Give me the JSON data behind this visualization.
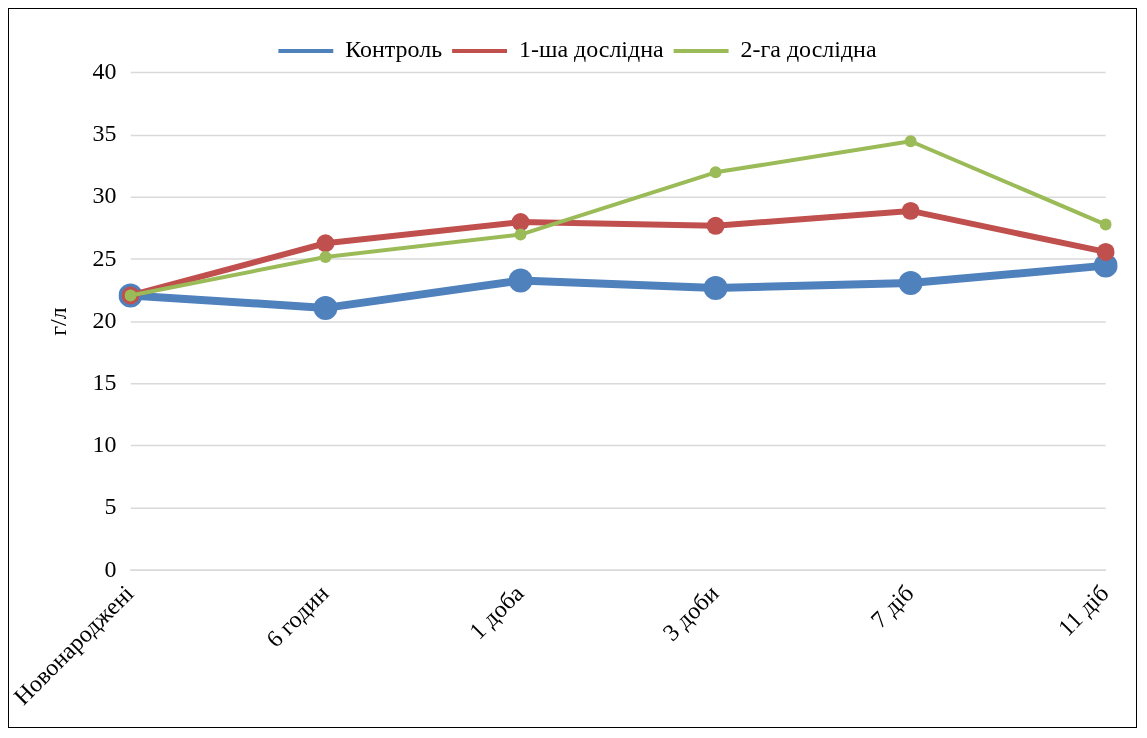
{
  "chart_data": {
    "type": "line",
    "ylabel": "г/л",
    "categories": [
      "Новонароджені",
      "6 годин",
      "1 доба",
      "3 доби",
      "7 діб",
      "11 діб"
    ],
    "series": [
      {
        "name": "Контроль",
        "color": "#4f81bd",
        "values": [
          22.1,
          21.1,
          23.3,
          22.7,
          23.1,
          24.5
        ]
      },
      {
        "name": "1-ша дослідна",
        "color": "#c0504d",
        "values": [
          22.1,
          26.3,
          28.0,
          27.7,
          28.9,
          25.6
        ]
      },
      {
        "name": "2-га дослідна",
        "color": "#9bbb59",
        "values": [
          22.1,
          25.2,
          27.0,
          32.0,
          34.5,
          27.8
        ]
      }
    ],
    "ylim": [
      0,
      40
    ],
    "yticks": [
      0,
      5,
      10,
      15,
      20,
      25,
      30,
      35,
      40
    ],
    "grid": "y",
    "legend": "top",
    "marker": "circle",
    "line_style": "solid"
  }
}
